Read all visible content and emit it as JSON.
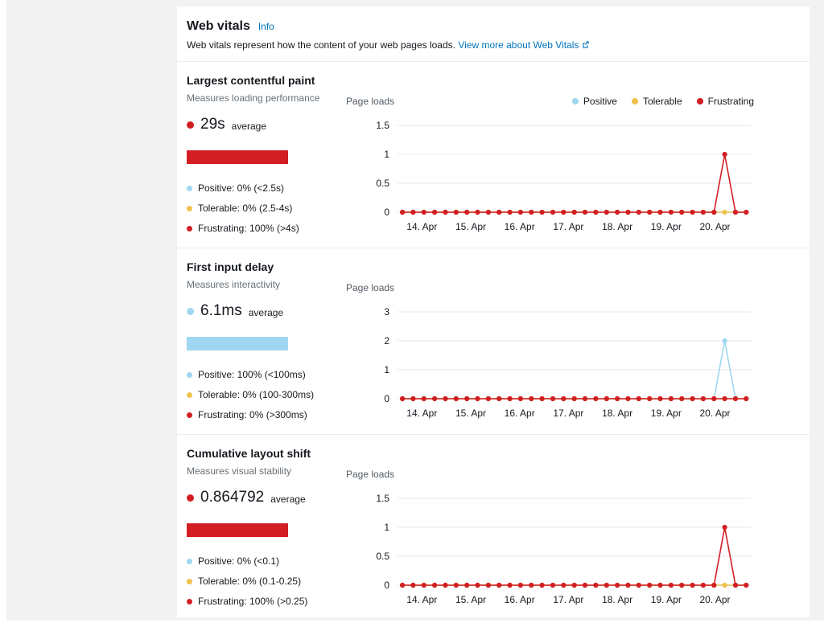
{
  "colors": {
    "positive": "#A0D7F0",
    "tolerable": "#F0C350",
    "frustrating": "#D21E23",
    "link": "#0073bb"
  },
  "header": {
    "title": "Web vitals",
    "info_label": "Info",
    "description": "Web vitals represent how the content of your web pages loads.",
    "learn_more_label": "View more about Web Vitals"
  },
  "legend": {
    "items": [
      {
        "label": "Positive",
        "color": "positive"
      },
      {
        "label": "Tolerable",
        "color": "tolerable"
      },
      {
        "label": "Frustrating",
        "color": "frustrating"
      }
    ]
  },
  "chart_data": [
    {
      "type": "line",
      "title": "Largest contentful paint",
      "subtitle": "Measures loading performance",
      "average_value": "29s",
      "average_label": "average",
      "average_color": "frustrating",
      "bar_color": "frustrating",
      "distribution": [
        {
          "label": "Positive: 0% (<2.5s)",
          "color": "positive"
        },
        {
          "label": "Tolerable: 0% (2.5-4s)",
          "color": "tolerable"
        },
        {
          "label": "Frustrating: 100% (>4s)",
          "color": "frustrating"
        }
      ],
      "ylabel": "Page loads",
      "ylim": [
        0,
        1.5
      ],
      "yticks": [
        0,
        0.5,
        1,
        1.5
      ],
      "xlim": [
        13.5,
        20.75
      ],
      "xticks": [
        {
          "x": 14,
          "label": "14. Apr"
        },
        {
          "x": 15,
          "label": "15. Apr"
        },
        {
          "x": 16,
          "label": "16. Apr"
        },
        {
          "x": 17,
          "label": "17. Apr"
        },
        {
          "x": 18,
          "label": "18. Apr"
        },
        {
          "x": 19,
          "label": "19. Apr"
        },
        {
          "x": 20,
          "label": "20. Apr"
        }
      ],
      "x": [
        13.6,
        13.82,
        14.04,
        14.26,
        14.48,
        14.7,
        14.92,
        15.14,
        15.36,
        15.58,
        15.8,
        16.02,
        16.24,
        16.46,
        16.68,
        16.9,
        17.12,
        17.34,
        17.56,
        17.78,
        18,
        18.22,
        18.44,
        18.66,
        18.88,
        19.1,
        19.32,
        19.54,
        19.76,
        19.98,
        20.2,
        20.42,
        20.64
      ],
      "series": [
        {
          "name": "Positive",
          "color": "positive",
          "values": [
            0,
            0,
            0,
            0,
            0,
            0,
            0,
            0,
            0,
            0,
            0,
            0,
            0,
            0,
            0,
            0,
            0,
            0,
            0,
            0,
            0,
            0,
            0,
            0,
            0,
            0,
            0,
            0,
            0,
            0,
            0,
            0,
            0
          ]
        },
        {
          "name": "Tolerable",
          "color": "tolerable",
          "values": [
            0,
            0,
            0,
            0,
            0,
            0,
            0,
            0,
            0,
            0,
            0,
            0,
            0,
            0,
            0,
            0,
            0,
            0,
            0,
            0,
            0,
            0,
            0,
            0,
            0,
            0,
            0,
            0,
            0,
            0,
            0,
            0,
            0
          ]
        },
        {
          "name": "Frustrating",
          "color": "frustrating",
          "values": [
            0,
            0,
            0,
            0,
            0,
            0,
            0,
            0,
            0,
            0,
            0,
            0,
            0,
            0,
            0,
            0,
            0,
            0,
            0,
            0,
            0,
            0,
            0,
            0,
            0,
            0,
            0,
            0,
            0,
            0,
            1,
            0,
            0
          ]
        }
      ]
    },
    {
      "type": "line",
      "title": "First input delay",
      "subtitle": "Measures interactivity",
      "average_value": "6.1ms",
      "average_label": "average",
      "average_color": "positive",
      "bar_color": "positive",
      "distribution": [
        {
          "label": "Positive: 100% (<100ms)",
          "color": "positive"
        },
        {
          "label": "Tolerable: 0% (100-300ms)",
          "color": "tolerable"
        },
        {
          "label": "Frustrating: 0% (>300ms)",
          "color": "frustrating"
        }
      ],
      "ylabel": "Page loads",
      "ylim": [
        0,
        3
      ],
      "yticks": [
        0,
        1,
        2,
        3
      ],
      "xlim": [
        13.5,
        20.75
      ],
      "xticks": [
        {
          "x": 14,
          "label": "14. Apr"
        },
        {
          "x": 15,
          "label": "15. Apr"
        },
        {
          "x": 16,
          "label": "16. Apr"
        },
        {
          "x": 17,
          "label": "17. Apr"
        },
        {
          "x": 18,
          "label": "18. Apr"
        },
        {
          "x": 19,
          "label": "19. Apr"
        },
        {
          "x": 20,
          "label": "20. Apr"
        }
      ],
      "x": [
        13.6,
        13.82,
        14.04,
        14.26,
        14.48,
        14.7,
        14.92,
        15.14,
        15.36,
        15.58,
        15.8,
        16.02,
        16.24,
        16.46,
        16.68,
        16.9,
        17.12,
        17.34,
        17.56,
        17.78,
        18,
        18.22,
        18.44,
        18.66,
        18.88,
        19.1,
        19.32,
        19.54,
        19.76,
        19.98,
        20.2,
        20.42,
        20.64
      ],
      "series": [
        {
          "name": "Positive",
          "color": "positive",
          "values": [
            0,
            0,
            0,
            0,
            0,
            0,
            0,
            0,
            0,
            0,
            0,
            0,
            0,
            0,
            0,
            0,
            0,
            0,
            0,
            0,
            0,
            0,
            0,
            0,
            0,
            0,
            0,
            0,
            0,
            0,
            2,
            0,
            0
          ]
        },
        {
          "name": "Tolerable",
          "color": "tolerable",
          "values": [
            0,
            0,
            0,
            0,
            0,
            0,
            0,
            0,
            0,
            0,
            0,
            0,
            0,
            0,
            0,
            0,
            0,
            0,
            0,
            0,
            0,
            0,
            0,
            0,
            0,
            0,
            0,
            0,
            0,
            0,
            0,
            0,
            0
          ]
        },
        {
          "name": "Frustrating",
          "color": "frustrating",
          "values": [
            0,
            0,
            0,
            0,
            0,
            0,
            0,
            0,
            0,
            0,
            0,
            0,
            0,
            0,
            0,
            0,
            0,
            0,
            0,
            0,
            0,
            0,
            0,
            0,
            0,
            0,
            0,
            0,
            0,
            0,
            0,
            0,
            0
          ]
        }
      ]
    },
    {
      "type": "line",
      "title": "Cumulative layout shift",
      "subtitle": "Measures visual stability",
      "average_value": "0.864792",
      "average_label": "average",
      "average_color": "frustrating",
      "bar_color": "frustrating",
      "distribution": [
        {
          "label": "Positive: 0% (<0.1)",
          "color": "positive"
        },
        {
          "label": "Tolerable: 0% (0.1-0.25)",
          "color": "tolerable"
        },
        {
          "label": "Frustrating: 100% (>0.25)",
          "color": "frustrating"
        }
      ],
      "ylabel": "Page loads",
      "ylim": [
        0,
        1.5
      ],
      "yticks": [
        0,
        0.5,
        1,
        1.5
      ],
      "xlim": [
        13.5,
        20.75
      ],
      "xticks": [
        {
          "x": 14,
          "label": "14. Apr"
        },
        {
          "x": 15,
          "label": "15. Apr"
        },
        {
          "x": 16,
          "label": "16. Apr"
        },
        {
          "x": 17,
          "label": "17. Apr"
        },
        {
          "x": 18,
          "label": "18. Apr"
        },
        {
          "x": 19,
          "label": "19. Apr"
        },
        {
          "x": 20,
          "label": "20. Apr"
        }
      ],
      "x": [
        13.6,
        13.82,
        14.04,
        14.26,
        14.48,
        14.7,
        14.92,
        15.14,
        15.36,
        15.58,
        15.8,
        16.02,
        16.24,
        16.46,
        16.68,
        16.9,
        17.12,
        17.34,
        17.56,
        17.78,
        18,
        18.22,
        18.44,
        18.66,
        18.88,
        19.1,
        19.32,
        19.54,
        19.76,
        19.98,
        20.2,
        20.42,
        20.64
      ],
      "series": [
        {
          "name": "Positive",
          "color": "positive",
          "values": [
            0,
            0,
            0,
            0,
            0,
            0,
            0,
            0,
            0,
            0,
            0,
            0,
            0,
            0,
            0,
            0,
            0,
            0,
            0,
            0,
            0,
            0,
            0,
            0,
            0,
            0,
            0,
            0,
            0,
            0,
            0,
            0,
            0
          ]
        },
        {
          "name": "Tolerable",
          "color": "tolerable",
          "values": [
            0,
            0,
            0,
            0,
            0,
            0,
            0,
            0,
            0,
            0,
            0,
            0,
            0,
            0,
            0,
            0,
            0,
            0,
            0,
            0,
            0,
            0,
            0,
            0,
            0,
            0,
            0,
            0,
            0,
            0,
            0,
            0,
            0
          ]
        },
        {
          "name": "Frustrating",
          "color": "frustrating",
          "values": [
            0,
            0,
            0,
            0,
            0,
            0,
            0,
            0,
            0,
            0,
            0,
            0,
            0,
            0,
            0,
            0,
            0,
            0,
            0,
            0,
            0,
            0,
            0,
            0,
            0,
            0,
            0,
            0,
            0,
            0,
            1,
            0,
            0
          ]
        }
      ]
    }
  ]
}
